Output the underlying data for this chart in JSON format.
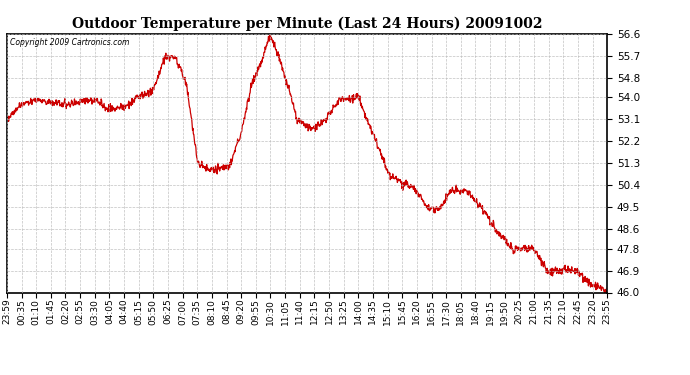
{
  "title": "Outdoor Temperature per Minute (Last 24 Hours) 20091002",
  "copyright": "Copyright 2009 Cartronics.com",
  "line_color": "#cc0000",
  "bg_color": "#ffffff",
  "grid_color": "#bbbbbb",
  "ylim": [
    46.0,
    56.6
  ],
  "yticks": [
    46.0,
    46.9,
    47.8,
    48.6,
    49.5,
    50.4,
    51.3,
    52.2,
    53.1,
    54.0,
    54.8,
    55.7,
    56.6
  ],
  "xtick_labels": [
    "23:59",
    "00:35",
    "01:10",
    "01:45",
    "02:20",
    "02:55",
    "03:30",
    "04:05",
    "04:40",
    "05:15",
    "05:50",
    "06:25",
    "07:00",
    "07:35",
    "08:10",
    "08:45",
    "09:20",
    "09:55",
    "10:30",
    "11:05",
    "11:40",
    "12:15",
    "12:50",
    "13:25",
    "14:00",
    "14:35",
    "15:10",
    "15:45",
    "16:20",
    "16:55",
    "17:30",
    "18:05",
    "18:40",
    "19:15",
    "19:50",
    "20:25",
    "21:00",
    "21:35",
    "22:10",
    "22:45",
    "23:20",
    "23:55"
  ],
  "n_xticks": 42,
  "key_minutes": [
    0,
    36,
    71,
    106,
    141,
    176,
    211,
    246,
    281,
    316,
    351,
    381,
    406,
    431,
    456,
    481,
    506,
    531,
    561,
    586,
    611,
    631,
    661,
    696,
    731,
    761,
    796,
    841,
    886,
    916,
    946,
    976,
    1006,
    1036,
    1066,
    1106,
    1141,
    1176,
    1211,
    1261,
    1296,
    1331,
    1366,
    1401,
    1436
  ],
  "key_temps": [
    53.1,
    53.7,
    53.9,
    53.8,
    53.7,
    53.8,
    53.9,
    53.5,
    53.6,
    54.0,
    54.3,
    55.7,
    55.6,
    54.5,
    51.4,
    51.0,
    51.1,
    51.1,
    52.5,
    54.5,
    55.5,
    56.6,
    55.2,
    53.1,
    52.7,
    53.0,
    53.9,
    54.0,
    52.2,
    50.8,
    50.5,
    50.3,
    49.5,
    49.4,
    50.2,
    50.1,
    49.4,
    48.5,
    47.8,
    47.8,
    46.9,
    46.9,
    46.9,
    46.3,
    46.1
  ]
}
